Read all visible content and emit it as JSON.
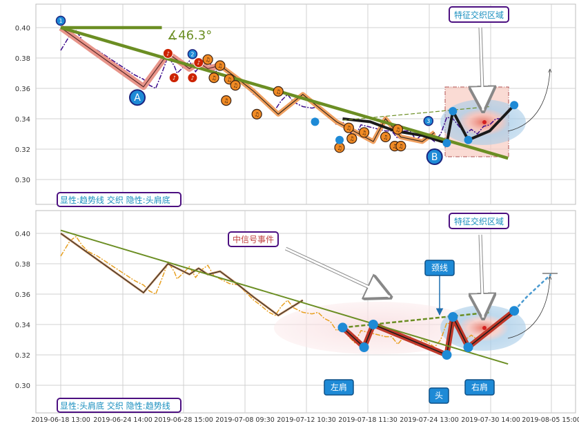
{
  "chart_data": [
    {
      "type": "line",
      "panel": "top",
      "title": "",
      "ylim": [
        0.285,
        0.415
      ],
      "yticks": [
        "0.30",
        "0.32",
        "0.34",
        "0.36",
        "0.38",
        "0.40"
      ],
      "angle_label": "∡46.3°",
      "annotation_box": "特征交织区域",
      "bottom_label": "显性:趋势线 交织 隐性:头肩底",
      "point_labels": {
        "A": "A",
        "B": "B"
      },
      "series": [
        {
          "style": "price-dashed-purple",
          "values": [
            [
              0,
              0.385
            ],
            [
              3,
              0.395
            ],
            [
              5,
              0.398
            ],
            [
              7,
              0.392
            ],
            [
              9,
              0.388
            ],
            [
              12,
              0.385
            ],
            [
              15,
              0.381
            ],
            [
              18,
              0.377
            ],
            [
              21,
              0.373
            ],
            [
              24,
              0.369
            ],
            [
              27,
              0.366
            ],
            [
              29,
              0.362
            ],
            [
              31,
              0.36
            ],
            [
              33,
              0.37
            ],
            [
              35,
              0.381
            ],
            [
              37,
              0.375
            ],
            [
              38,
              0.37
            ],
            [
              40,
              0.374
            ],
            [
              42,
              0.378
            ],
            [
              44,
              0.371
            ],
            [
              46,
              0.376
            ],
            [
              48,
              0.379
            ],
            [
              50,
              0.372
            ],
            [
              52,
              0.37
            ],
            [
              55,
              0.367
            ],
            [
              58,
              0.366
            ],
            [
              61,
              0.36
            ],
            [
              63,
              0.356
            ],
            [
              65,
              0.353
            ],
            [
              68,
              0.348
            ],
            [
              70,
              0.346
            ],
            [
              72,
              0.352
            ],
            [
              74,
              0.356
            ],
            [
              76,
              0.351
            ],
            [
              79,
              0.348
            ],
            [
              82,
              0.347
            ],
            [
              84,
              0.348
            ],
            [
              86,
              0.344
            ],
            [
              88,
              0.342
            ],
            [
              90,
              0.336
            ],
            [
              92,
              0.338
            ],
            [
              94,
              0.332
            ],
            [
              96,
              0.328
            ],
            [
              98,
              0.336
            ],
            [
              100,
              0.335
            ],
            [
              102,
              0.334
            ],
            [
              104,
              0.333
            ],
            [
              106,
              0.332
            ],
            [
              108,
              0.332
            ],
            [
              110,
              0.327
            ],
            [
              112,
              0.332
            ],
            [
              114,
              0.332
            ],
            [
              116,
              0.326
            ],
            [
              118,
              0.33
            ],
            [
              120,
              0.328
            ],
            [
              122,
              0.325
            ],
            [
              124,
              0.33
            ],
            [
              126,
              0.341
            ],
            [
              128,
              0.34
            ],
            [
              130,
              0.335
            ],
            [
              132,
              0.33
            ],
            [
              134,
              0.333
            ],
            [
              136,
              0.33
            ],
            [
              138,
              0.335
            ],
            [
              140,
              0.336
            ],
            [
              142,
              0.34
            ],
            [
              144,
              0.34
            ]
          ]
        },
        {
          "style": "zigzag-pink",
          "values": [
            [
              0,
              0.4
            ],
            [
              27,
              0.361
            ],
            [
              35,
              0.383
            ],
            [
              42,
              0.373
            ],
            [
              45,
              0.377
            ],
            [
              48,
              0.373
            ],
            [
              52,
              0.375
            ]
          ]
        },
        {
          "style": "zigzag-orange",
          "values": [
            [
              52,
              0.375
            ],
            [
              58,
              0.366
            ],
            [
              63,
              0.358
            ],
            [
              71,
              0.343
            ],
            [
              79,
              0.356
            ],
            [
              90,
              0.338
            ],
            [
              102,
              0.325
            ],
            [
              106,
              0.34
            ],
            [
              111,
              0.328
            ],
            [
              118,
              0.325
            ],
            [
              122,
              0.331
            ]
          ]
        },
        {
          "style": "zigzag-black",
          "values": [
            [
              92,
              0.34
            ],
            [
              101,
              0.338
            ],
            [
              109,
              0.332
            ],
            [
              118,
              0.329
            ],
            [
              126,
              0.324
            ],
            [
              128,
              0.345
            ],
            [
              133,
              0.326
            ],
            [
              140,
              0.332
            ],
            [
              148,
              0.349
            ]
          ]
        },
        {
          "style": "trendline-green",
          "values": [
            [
              0,
              0.4
            ],
            [
              33,
              0.4
            ]
          ]
        },
        {
          "style": "trendline-green",
          "values": [
            [
              0,
              0.4
            ],
            [
              146,
              0.314
            ]
          ]
        },
        {
          "style": "neckline-dashed",
          "values": [
            [
              92,
              0.339
            ],
            [
              140,
              0.348
            ]
          ]
        }
      ]
    },
    {
      "type": "line",
      "panel": "bottom",
      "title": "",
      "ylim": [
        0.285,
        0.415
      ],
      "yticks": [
        "0.30",
        "0.32",
        "0.34",
        "0.36",
        "0.38",
        "0.40"
      ],
      "xticks": [
        "2019-06-18 13:00",
        "2019-06-24 14:00",
        "2019-06-28 15:00",
        "2019-07-08 09:30",
        "2019-07-12 10:30",
        "2019-07-18 11:30",
        "2019-07-24 13:00",
        "2019-07-30 14:00",
        "2019-08-05 15:00"
      ],
      "annotation_box": "特征交织区域",
      "signal_box": "中信号事件",
      "neckline_label": "颈线",
      "shoulder_labels": {
        "left": "左肩",
        "head": "头",
        "right": "右肩"
      },
      "bottom_label": "显性:头肩底 交织 隐性:趋势线",
      "series": [
        {
          "style": "price-dashed-orange",
          "values": [
            [
              0,
              0.385
            ],
            [
              3,
              0.395
            ],
            [
              5,
              0.398
            ],
            [
              7,
              0.392
            ],
            [
              9,
              0.388
            ],
            [
              12,
              0.385
            ],
            [
              15,
              0.381
            ],
            [
              18,
              0.377
            ],
            [
              21,
              0.373
            ],
            [
              24,
              0.369
            ],
            [
              27,
              0.366
            ],
            [
              29,
              0.362
            ],
            [
              31,
              0.36
            ],
            [
              33,
              0.37
            ],
            [
              35,
              0.381
            ],
            [
              37,
              0.375
            ],
            [
              38,
              0.37
            ],
            [
              40,
              0.374
            ],
            [
              42,
              0.378
            ],
            [
              44,
              0.371
            ],
            [
              46,
              0.376
            ],
            [
              48,
              0.379
            ],
            [
              50,
              0.372
            ],
            [
              52,
              0.37
            ],
            [
              55,
              0.367
            ],
            [
              58,
              0.366
            ],
            [
              61,
              0.36
            ],
            [
              63,
              0.356
            ],
            [
              65,
              0.353
            ],
            [
              68,
              0.348
            ],
            [
              70,
              0.346
            ],
            [
              72,
              0.352
            ],
            [
              74,
              0.356
            ],
            [
              76,
              0.351
            ],
            [
              79,
              0.348
            ],
            [
              82,
              0.347
            ],
            [
              84,
              0.348
            ],
            [
              86,
              0.344
            ],
            [
              88,
              0.342
            ],
            [
              90,
              0.336
            ],
            [
              92,
              0.338
            ],
            [
              94,
              0.332
            ],
            [
              96,
              0.328
            ],
            [
              98,
              0.336
            ],
            [
              100,
              0.335
            ],
            [
              102,
              0.334
            ],
            [
              104,
              0.333
            ],
            [
              106,
              0.332
            ],
            [
              108,
              0.332
            ],
            [
              110,
              0.327
            ],
            [
              112,
              0.332
            ],
            [
              114,
              0.332
            ],
            [
              116,
              0.326
            ],
            [
              118,
              0.33
            ],
            [
              120,
              0.328
            ],
            [
              122,
              0.325
            ],
            [
              124,
              0.33
            ],
            [
              126,
              0.341
            ],
            [
              128,
              0.34
            ],
            [
              130,
              0.335
            ],
            [
              132,
              0.33
            ],
            [
              134,
              0.333
            ],
            [
              136,
              0.33
            ],
            [
              138,
              0.335
            ],
            [
              140,
              0.336
            ],
            [
              142,
              0.34
            ],
            [
              144,
              0.34
            ]
          ]
        },
        {
          "style": "zigzag-thin",
          "values": [
            [
              0,
              0.4
            ],
            [
              27,
              0.361
            ],
            [
              35,
              0.38
            ],
            [
              42,
              0.373
            ],
            [
              45,
              0.377
            ],
            [
              48,
              0.373
            ],
            [
              52,
              0.375
            ],
            [
              58,
              0.366
            ],
            [
              63,
              0.358
            ],
            [
              71,
              0.346
            ],
            [
              79,
              0.356
            ]
          ]
        },
        {
          "style": "shoulder-red",
          "values": [
            [
              92,
              0.338
            ],
            [
              99,
              0.325
            ],
            [
              102,
              0.34
            ],
            [
              126,
              0.32
            ],
            [
              128,
              0.345
            ],
            [
              133,
              0.325
            ],
            [
              148,
              0.349
            ]
          ]
        },
        {
          "style": "breakout-blue-dashed",
          "values": [
            [
              148,
              0.349
            ],
            [
              152,
              0.358
            ],
            [
              160,
              0.373
            ]
          ]
        },
        {
          "style": "trendline-green",
          "values": [
            [
              0,
              0.402
            ],
            [
              146,
              0.314
            ]
          ]
        },
        {
          "style": "neckline-dashed",
          "values": [
            [
              92,
              0.338
            ],
            [
              140,
              0.348
            ]
          ]
        }
      ]
    }
  ],
  "colors": {
    "grid": "#d0d0d0",
    "trend": "#6b8e23",
    "pink": "#e8958a",
    "orange": "#f0a060",
    "purple": "#3b0a8a",
    "blue_dot": "#1e8ad6",
    "red_dot": "#cc2200",
    "box_border": "#4b0f80",
    "box_text": "#1a8fbf"
  },
  "icons": [
    "music-note-icon",
    "circled-number-icon"
  ]
}
